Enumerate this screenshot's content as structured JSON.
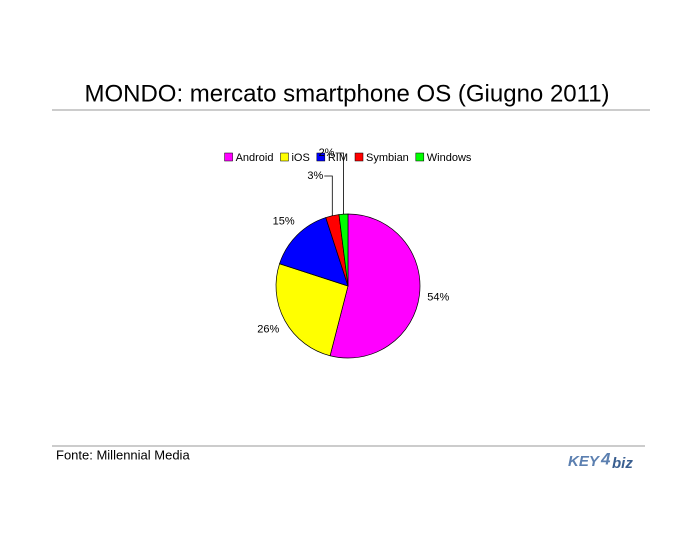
{
  "chart_data": {
    "type": "pie",
    "title": "MONDO: mercato smartphone OS (Giugno 2011)",
    "categories": [
      "Android",
      "iOS",
      "RIM",
      "Symbian",
      "Windows"
    ],
    "values": [
      54,
      26,
      15,
      3,
      2
    ],
    "value_labels": [
      "54%",
      "26%",
      "15%",
      "3%",
      "2%"
    ],
    "colors": [
      "#ff00ff",
      "#ffff00",
      "#0000ff",
      "#ff0000",
      "#00ff00"
    ],
    "legend": "top"
  },
  "source": "Fonte: Millennial Media",
  "logo": {
    "left": "KEY",
    "mid": "4",
    "right": "biz"
  }
}
